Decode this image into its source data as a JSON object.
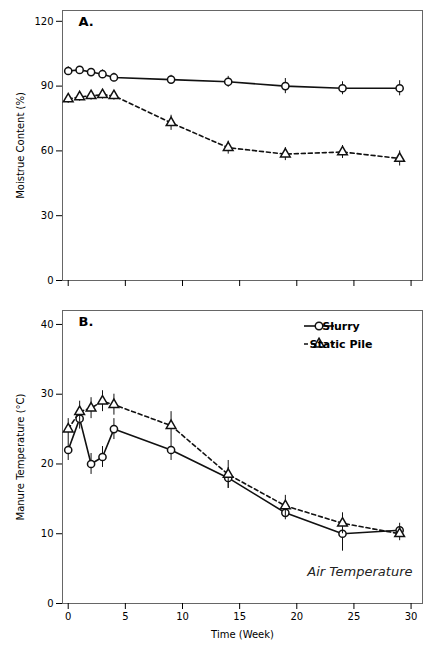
{
  "chart_data": [
    {
      "type": "line",
      "title": "A.",
      "ylabel": "Moistrue Content (%)",
      "x": [
        0,
        1,
        2,
        3,
        4,
        9,
        14,
        19,
        24,
        29
      ],
      "xlim": [
        -0.5,
        31
      ],
      "xticks": [
        0,
        5,
        10,
        15,
        20,
        25,
        30
      ],
      "ylim": [
        0,
        125
      ],
      "yticks": [
        0,
        30,
        60,
        90,
        120
      ],
      "tick_labels": "y",
      "series": [
        {
          "name": "Slurry",
          "color": "#111111",
          "marker": "circle",
          "line_style": "solid",
          "values": [
            97.0,
            97.5,
            96.5,
            95.5,
            94.0,
            93.0,
            92.0,
            90.0,
            89.0,
            89.0
          ],
          "yerr": [
            2.0,
            1.5,
            1.5,
            2.0,
            2.0,
            2.0,
            2.5,
            3.5,
            3.0,
            3.5
          ]
        },
        {
          "name": "Static Pile",
          "color": "#111111",
          "marker": "triangle",
          "line_style": "dashed",
          "values": [
            84.0,
            85.0,
            85.5,
            86.0,
            85.5,
            73.0,
            61.5,
            58.5,
            59.5,
            56.5
          ],
          "yerr": [
            2.0,
            2.0,
            2.0,
            2.0,
            2.0,
            3.5,
            3.0,
            3.0,
            3.0,
            3.5
          ]
        }
      ]
    },
    {
      "type": "line",
      "title": "B.",
      "ylabel": "Manure Temperature (°C)",
      "xlabel": "Time (Week)",
      "annotation": "Air Temperature",
      "x": [
        0,
        1,
        2,
        3,
        4,
        9,
        14,
        19,
        24,
        29
      ],
      "xlim": [
        -0.5,
        31
      ],
      "xticks": [
        0,
        5,
        10,
        15,
        20,
        25,
        30
      ],
      "ylim": [
        0,
        42
      ],
      "yticks": [
        0,
        10,
        20,
        30,
        40
      ],
      "legend": "upper right",
      "series": [
        {
          "name": "Slurry",
          "color": "#111111",
          "marker": "circle",
          "line_style": "solid",
          "values": [
            22.0,
            26.5,
            20.0,
            21.0,
            25.0,
            22.0,
            18.0,
            13.0,
            10.0,
            10.5
          ],
          "yerr": [
            1.5,
            1.5,
            1.5,
            1.5,
            1.5,
            1.5,
            1.5,
            1.0,
            2.5,
            1.0
          ]
        },
        {
          "name": "Static Pile",
          "color": "#111111",
          "marker": "triangle",
          "line_style": "dashed",
          "values": [
            25.0,
            27.5,
            28.0,
            29.0,
            28.5,
            25.5,
            18.5,
            14.0,
            11.5,
            10.0
          ],
          "yerr": [
            1.5,
            1.5,
            1.5,
            1.5,
            1.5,
            2.0,
            2.0,
            1.5,
            1.5,
            1.0
          ]
        }
      ]
    }
  ]
}
